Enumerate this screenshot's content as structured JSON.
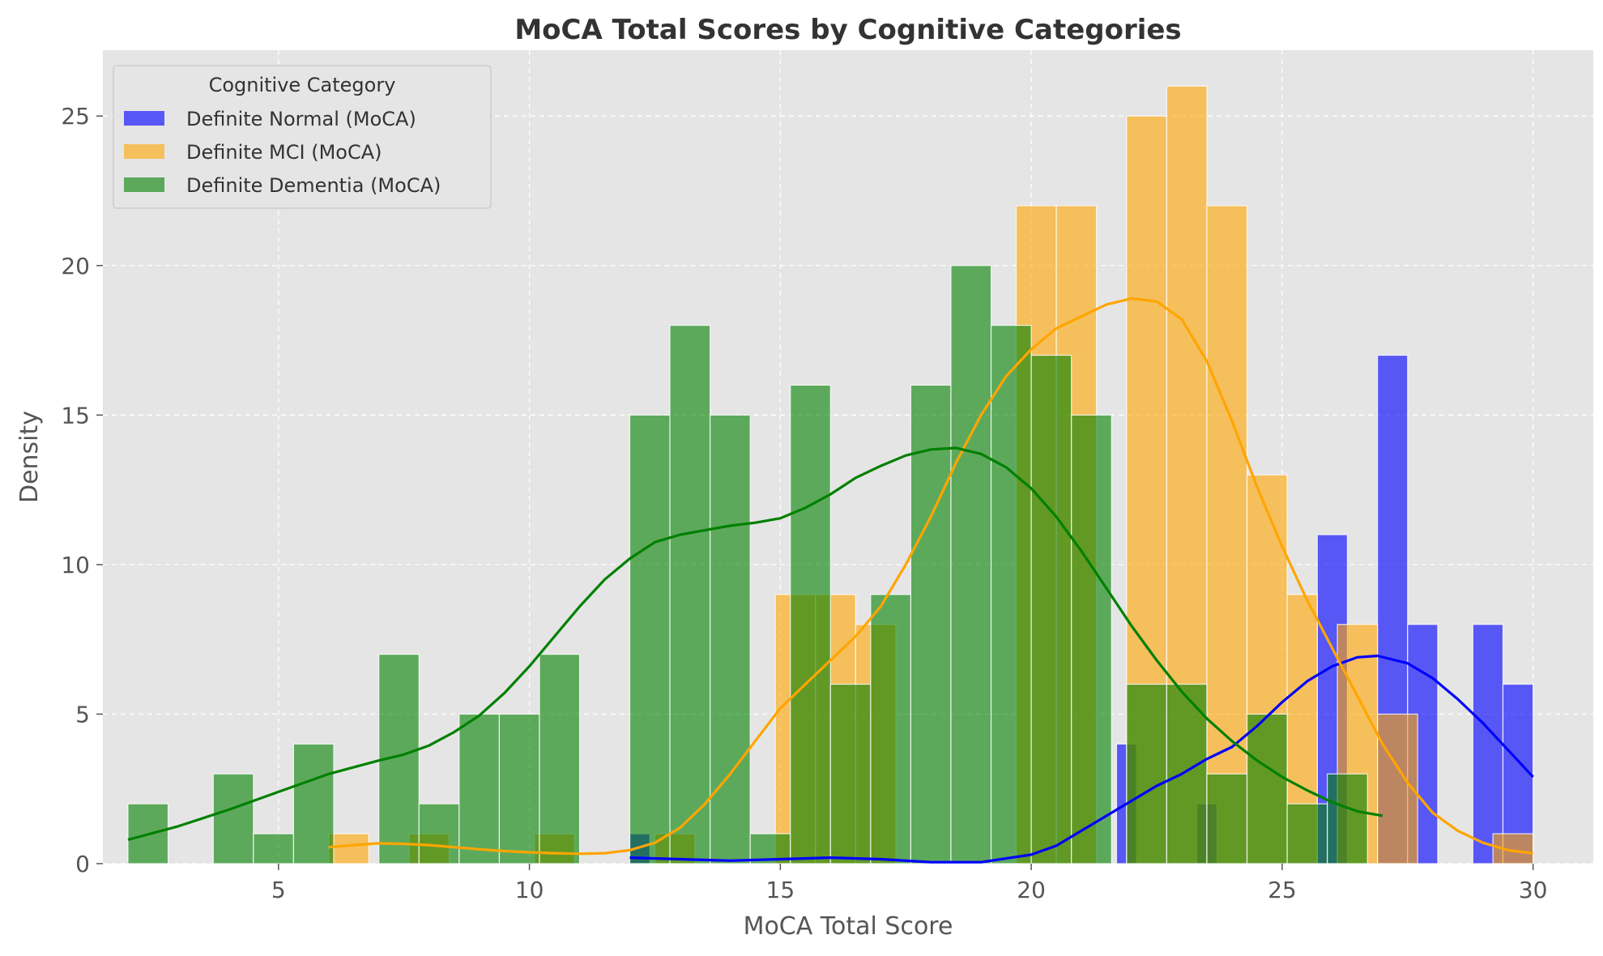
{
  "chart_data": {
    "type": "bar",
    "title": "MoCA Total Scores by Cognitive Categories",
    "xlabel": "MoCA Total Score",
    "ylabel": "Density",
    "xlim": [
      1.5,
      31.2
    ],
    "ylim": [
      0,
      27.2
    ],
    "xticks": [
      5,
      10,
      15,
      20,
      25,
      30
    ],
    "yticks": [
      0,
      5,
      10,
      15,
      20,
      25
    ],
    "grid": true,
    "legend": {
      "title": "Cognitive Category",
      "placement": "top-left"
    },
    "series": [
      {
        "name": "Definite Normal (MoCA)",
        "color": "#0000ff",
        "opacity": 0.62,
        "bars": [
          {
            "x0": 12.0,
            "x1": 12.4,
            "value": 1
          },
          {
            "x0": 21.7,
            "x1": 22.1,
            "value": 4
          },
          {
            "x0": 23.3,
            "x1": 23.7,
            "value": 2
          },
          {
            "x0": 25.7,
            "x1": 26.3,
            "value": 11
          },
          {
            "x0": 26.9,
            "x1": 27.5,
            "value": 17
          },
          {
            "x0": 27.5,
            "x1": 28.1,
            "value": 8
          },
          {
            "x0": 28.8,
            "x1": 29.4,
            "value": 8
          },
          {
            "x0": 29.4,
            "x1": 30.0,
            "value": 6
          }
        ],
        "kde": [
          [
            12.0,
            0.2
          ],
          [
            13,
            0.15
          ],
          [
            14,
            0.1
          ],
          [
            15,
            0.15
          ],
          [
            16,
            0.2
          ],
          [
            17,
            0.15
          ],
          [
            18,
            0.05
          ],
          [
            19,
            0.05
          ],
          [
            20,
            0.3
          ],
          [
            20.5,
            0.6
          ],
          [
            21,
            1.1
          ],
          [
            21.5,
            1.6
          ],
          [
            22,
            2.1
          ],
          [
            22.5,
            2.6
          ],
          [
            23,
            3.0
          ],
          [
            23.5,
            3.5
          ],
          [
            24,
            3.9
          ],
          [
            24.5,
            4.6
          ],
          [
            25,
            5.4
          ],
          [
            25.5,
            6.1
          ],
          [
            26,
            6.6
          ],
          [
            26.5,
            6.9
          ],
          [
            26.9,
            6.95
          ],
          [
            27.5,
            6.7
          ],
          [
            28,
            6.2
          ],
          [
            28.5,
            5.5
          ],
          [
            29,
            4.7
          ],
          [
            29.5,
            3.8
          ],
          [
            30.0,
            2.9
          ]
        ]
      },
      {
        "name": "Definite MCI (MoCA)",
        "color": "#ffa500",
        "opacity": 0.6,
        "bars": [
          {
            "x0": 6.0,
            "x1": 6.8,
            "value": 1
          },
          {
            "x0": 7.6,
            "x1": 8.4,
            "value": 1
          },
          {
            "x0": 10.1,
            "x1": 10.9,
            "value": 1
          },
          {
            "x0": 12.5,
            "x1": 13.3,
            "value": 1
          },
          {
            "x0": 14.9,
            "x1": 15.7,
            "value": 9
          },
          {
            "x0": 15.7,
            "x1": 16.5,
            "value": 9
          },
          {
            "x0": 16.5,
            "x1": 17.3,
            "value": 8
          },
          {
            "x0": 19.7,
            "x1": 20.5,
            "value": 22
          },
          {
            "x0": 20.5,
            "x1": 21.3,
            "value": 22
          },
          {
            "x0": 21.9,
            "x1": 22.7,
            "value": 25
          },
          {
            "x0": 22.7,
            "x1": 23.5,
            "value": 26
          },
          {
            "x0": 23.5,
            "x1": 24.3,
            "value": 22
          },
          {
            "x0": 24.3,
            "x1": 25.1,
            "value": 13
          },
          {
            "x0": 25.1,
            "x1": 25.7,
            "value": 9
          },
          {
            "x0": 26.1,
            "x1": 26.9,
            "value": 8
          },
          {
            "x0": 26.9,
            "x1": 27.7,
            "value": 5
          },
          {
            "x0": 29.2,
            "x1": 30.0,
            "value": 1
          }
        ],
        "kde": [
          [
            6.0,
            0.55
          ],
          [
            6.5,
            0.62
          ],
          [
            7,
            0.68
          ],
          [
            7.5,
            0.66
          ],
          [
            8,
            0.62
          ],
          [
            8.5,
            0.55
          ],
          [
            9,
            0.48
          ],
          [
            9.5,
            0.42
          ],
          [
            10,
            0.38
          ],
          [
            10.5,
            0.35
          ],
          [
            11,
            0.33
          ],
          [
            11.5,
            0.35
          ],
          [
            12,
            0.45
          ],
          [
            12.5,
            0.7
          ],
          [
            13,
            1.2
          ],
          [
            13.5,
            2.0
          ],
          [
            14,
            3.0
          ],
          [
            14.5,
            4.1
          ],
          [
            15,
            5.2
          ],
          [
            15.5,
            6.0
          ],
          [
            16,
            6.8
          ],
          [
            16.5,
            7.6
          ],
          [
            17,
            8.6
          ],
          [
            17.5,
            10.0
          ],
          [
            18,
            11.6
          ],
          [
            18.5,
            13.4
          ],
          [
            19,
            15.0
          ],
          [
            19.5,
            16.3
          ],
          [
            20,
            17.2
          ],
          [
            20.5,
            17.9
          ],
          [
            21,
            18.3
          ],
          [
            21.5,
            18.7
          ],
          [
            22,
            18.9
          ],
          [
            22.5,
            18.8
          ],
          [
            23,
            18.2
          ],
          [
            23.5,
            16.8
          ],
          [
            24,
            14.8
          ],
          [
            24.5,
            12.6
          ],
          [
            25,
            10.6
          ],
          [
            25.5,
            8.8
          ],
          [
            26,
            7.2
          ],
          [
            26.5,
            5.6
          ],
          [
            27,
            4.0
          ],
          [
            27.5,
            2.7
          ],
          [
            28,
            1.7
          ],
          [
            28.5,
            1.1
          ],
          [
            29,
            0.7
          ],
          [
            29.5,
            0.45
          ],
          [
            30,
            0.35
          ]
        ]
      },
      {
        "name": "Definite Dementia (MoCA)",
        "color": "#008000",
        "opacity": 0.6,
        "bars": [
          {
            "x0": 2.0,
            "x1": 2.8,
            "value": 2
          },
          {
            "x0": 3.7,
            "x1": 4.5,
            "value": 3
          },
          {
            "x0": 4.5,
            "x1": 5.3,
            "value": 1
          },
          {
            "x0": 5.3,
            "x1": 6.1,
            "value": 4
          },
          {
            "x0": 7.0,
            "x1": 7.8,
            "value": 7
          },
          {
            "x0": 7.8,
            "x1": 8.6,
            "value": 2
          },
          {
            "x0": 8.6,
            "x1": 9.4,
            "value": 5
          },
          {
            "x0": 9.4,
            "x1": 10.2,
            "value": 5
          },
          {
            "x0": 10.2,
            "x1": 11.0,
            "value": 7
          },
          {
            "x0": 12.0,
            "x1": 12.8,
            "value": 15
          },
          {
            "x0": 12.8,
            "x1": 13.6,
            "value": 18
          },
          {
            "x0": 13.6,
            "x1": 14.4,
            "value": 15
          },
          {
            "x0": 14.4,
            "x1": 15.2,
            "value": 1
          },
          {
            "x0": 15.2,
            "x1": 16.0,
            "value": 16
          },
          {
            "x0": 16.0,
            "x1": 16.8,
            "value": 6
          },
          {
            "x0": 16.8,
            "x1": 17.6,
            "value": 9
          },
          {
            "x0": 17.6,
            "x1": 18.4,
            "value": 16
          },
          {
            "x0": 18.4,
            "x1": 19.2,
            "value": 20
          },
          {
            "x0": 19.2,
            "x1": 20.0,
            "value": 18
          },
          {
            "x0": 20.0,
            "x1": 20.8,
            "value": 17
          },
          {
            "x0": 20.8,
            "x1": 21.6,
            "value": 15
          },
          {
            "x0": 21.9,
            "x1": 22.7,
            "value": 6
          },
          {
            "x0": 22.7,
            "x1": 23.5,
            "value": 6
          },
          {
            "x0": 23.5,
            "x1": 24.3,
            "value": 3
          },
          {
            "x0": 24.3,
            "x1": 25.1,
            "value": 5
          },
          {
            "x0": 25.1,
            "x1": 25.9,
            "value": 2
          },
          {
            "x0": 25.9,
            "x1": 26.7,
            "value": 3
          }
        ],
        "kde": [
          [
            2.0,
            0.8
          ],
          [
            3,
            1.25
          ],
          [
            4,
            1.8
          ],
          [
            5,
            2.4
          ],
          [
            6,
            3.0
          ],
          [
            7,
            3.45
          ],
          [
            7.5,
            3.65
          ],
          [
            8,
            3.95
          ],
          [
            8.5,
            4.4
          ],
          [
            9,
            4.95
          ],
          [
            9.5,
            5.7
          ],
          [
            10,
            6.6
          ],
          [
            10.5,
            7.6
          ],
          [
            11,
            8.6
          ],
          [
            11.5,
            9.5
          ],
          [
            12,
            10.2
          ],
          [
            12.5,
            10.75
          ],
          [
            13,
            11.0
          ],
          [
            13.5,
            11.15
          ],
          [
            14,
            11.3
          ],
          [
            14.5,
            11.4
          ],
          [
            15,
            11.55
          ],
          [
            15.5,
            11.9
          ],
          [
            16,
            12.35
          ],
          [
            16.5,
            12.9
          ],
          [
            17,
            13.3
          ],
          [
            17.5,
            13.65
          ],
          [
            18,
            13.85
          ],
          [
            18.5,
            13.9
          ],
          [
            19,
            13.7
          ],
          [
            19.5,
            13.25
          ],
          [
            20,
            12.55
          ],
          [
            20.5,
            11.6
          ],
          [
            21,
            10.45
          ],
          [
            21.5,
            9.2
          ],
          [
            22,
            7.95
          ],
          [
            22.5,
            6.8
          ],
          [
            23,
            5.75
          ],
          [
            23.5,
            4.85
          ],
          [
            24,
            4.1
          ],
          [
            24.5,
            3.45
          ],
          [
            25,
            2.9
          ],
          [
            25.5,
            2.45
          ],
          [
            26,
            2.05
          ],
          [
            26.5,
            1.75
          ],
          [
            27,
            1.6
          ]
        ]
      }
    ]
  }
}
